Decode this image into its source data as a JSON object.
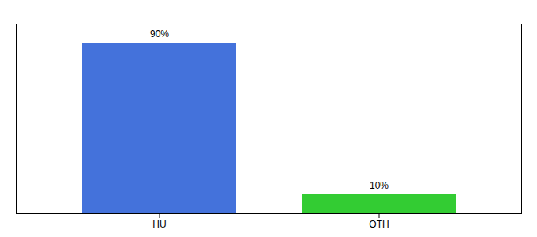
{
  "chart_data": {
    "type": "bar",
    "categories": [
      "HU",
      "OTH"
    ],
    "values": [
      90,
      10
    ],
    "value_labels": [
      "90%",
      "10%"
    ],
    "colors": [
      "#4472db",
      "#33cc33"
    ],
    "ylim": [
      0,
      100
    ],
    "data_labels": true,
    "tick_labels": "x"
  }
}
